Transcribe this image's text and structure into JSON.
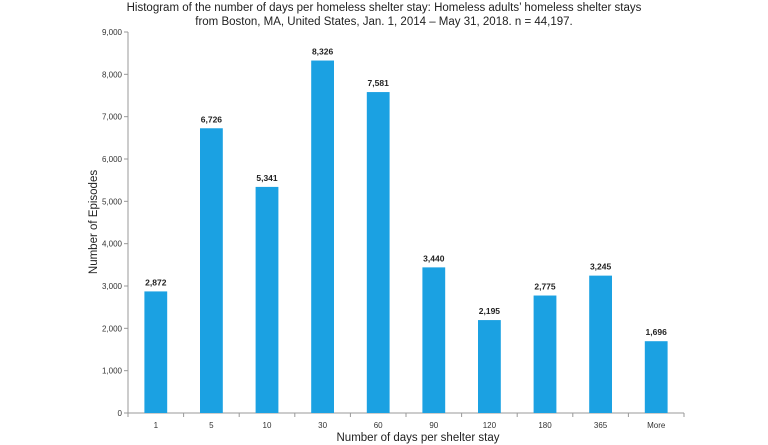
{
  "chart_data": {
    "type": "bar",
    "title_lines": [
      "Histogram of the number of days per homeless shelter stay: Homeless adults’ homeless shelter stays",
      "from Boston, MA, United States, Jan. 1, 2014 – May 31, 2018. n = 44,197."
    ],
    "xlabel": "Number of days per shelter stay",
    "ylabel": "Number of Episodes",
    "categories": [
      "1",
      "5",
      "10",
      "30",
      "60",
      "90",
      "120",
      "180",
      "365",
      "More"
    ],
    "values": [
      2872,
      6726,
      5341,
      8326,
      7581,
      3440,
      2195,
      2775,
      3245,
      1696
    ],
    "value_labels": [
      "2,872",
      "6,726",
      "5,341",
      "8,326",
      "7,581",
      "3,440",
      "2,195",
      "2,775",
      "3,245",
      "1,696"
    ],
    "ylim": [
      0,
      9000
    ],
    "yticks": [
      0,
      1000,
      2000,
      3000,
      4000,
      5000,
      6000,
      7000,
      8000,
      9000
    ],
    "ytick_labels": [
      "0",
      "1,000",
      "2,000",
      "3,000",
      "4,000",
      "5,000",
      "6,000",
      "7,000",
      "8,000",
      "9,000"
    ],
    "bar_color": "#1ba1e2",
    "axis_color": "#999999",
    "grid": false,
    "legend": "none"
  }
}
